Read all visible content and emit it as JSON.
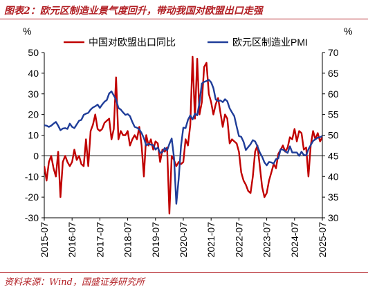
{
  "header": {
    "title": "图表2：欧元区制造业景气度回升，带动我国对欧盟出口走强"
  },
  "footer": {
    "source": "资料来源：Wind，国盛证券研究所"
  },
  "colors": {
    "accent": "#b21f24",
    "left_series": "#c00000",
    "right_series": "#1f3d99"
  },
  "chart_data": {
    "type": "line",
    "title": "",
    "left_axis": {
      "unit": "%",
      "ylim": [
        -30,
        50
      ],
      "ticks": [
        -30,
        -20,
        -10,
        0,
        10,
        20,
        30,
        40,
        50
      ]
    },
    "right_axis": {
      "unit": "%",
      "ylim": [
        30,
        70
      ],
      "ticks": [
        30,
        35,
        40,
        45,
        50,
        55,
        60,
        65,
        70
      ]
    },
    "x_ticks": [
      "2015-07",
      "2016-07",
      "2017-07",
      "2018-07",
      "2019-07",
      "2020-07",
      "2021-07",
      "2022-07",
      "2023-07",
      "2024-07",
      "2025-07"
    ],
    "x_tick_values": [
      2015.5,
      2016.5,
      2017.5,
      2018.5,
      2019.5,
      2020.5,
      2021.5,
      2022.5,
      2023.5,
      2024.5,
      2025.5
    ],
    "x_range": [
      2015.5,
      2025.5
    ],
    "legend": "top-center",
    "grid": false,
    "series": [
      {
        "name": "中国对欧盟出口同比",
        "axis": "left",
        "color": "#c00000",
        "points": [
          [
            2015.5,
            -5
          ],
          [
            2015.583,
            -12
          ],
          [
            2015.667,
            -3
          ],
          [
            2015.75,
            0
          ],
          [
            2015.833,
            -6
          ],
          [
            2015.917,
            -10
          ],
          [
            2016.0,
            2
          ],
          [
            2016.083,
            -20
          ],
          [
            2016.167,
            -3
          ],
          [
            2016.25,
            0
          ],
          [
            2016.333,
            -3
          ],
          [
            2016.417,
            -5
          ],
          [
            2016.5,
            -3
          ],
          [
            2016.583,
            3
          ],
          [
            2016.667,
            -2
          ],
          [
            2016.75,
            0
          ],
          [
            2016.833,
            -4
          ],
          [
            2016.917,
            -5
          ],
          [
            2017.0,
            8
          ],
          [
            2017.083,
            -5
          ],
          [
            2017.167,
            12
          ],
          [
            2017.25,
            15
          ],
          [
            2017.333,
            20
          ],
          [
            2017.417,
            13
          ],
          [
            2017.5,
            12
          ],
          [
            2017.583,
            13
          ],
          [
            2017.667,
            16
          ],
          [
            2017.75,
            17
          ],
          [
            2017.833,
            18
          ],
          [
            2017.917,
            8
          ],
          [
            2018.0,
            13
          ],
          [
            2018.083,
            38
          ],
          [
            2018.167,
            8
          ],
          [
            2018.25,
            12
          ],
          [
            2018.333,
            10
          ],
          [
            2018.417,
            10
          ],
          [
            2018.5,
            12
          ],
          [
            2018.583,
            5
          ],
          [
            2018.667,
            8
          ],
          [
            2018.75,
            10
          ],
          [
            2018.833,
            8
          ],
          [
            2018.917,
            14
          ],
          [
            2019.0,
            5
          ],
          [
            2019.083,
            -10
          ],
          [
            2019.167,
            10
          ],
          [
            2019.25,
            5
          ],
          [
            2019.333,
            8
          ],
          [
            2019.417,
            3
          ],
          [
            2019.5,
            7
          ],
          [
            2019.583,
            6
          ],
          [
            2019.667,
            -3
          ],
          [
            2019.75,
            3
          ],
          [
            2019.833,
            2
          ],
          [
            2019.917,
            4
          ],
          [
            2020.0,
            -28
          ],
          [
            2020.083,
            0
          ],
          [
            2020.167,
            -2
          ],
          [
            2020.25,
            -5
          ],
          [
            2020.333,
            -3
          ],
          [
            2020.417,
            -4
          ],
          [
            2020.5,
            -3
          ],
          [
            2020.583,
            8
          ],
          [
            2020.667,
            5
          ],
          [
            2020.75,
            15
          ],
          [
            2020.833,
            48
          ],
          [
            2020.917,
            18
          ],
          [
            2021.0,
            47
          ],
          [
            2021.083,
            20
          ],
          [
            2021.167,
            26
          ],
          [
            2021.25,
            43
          ],
          [
            2021.333,
            45
          ],
          [
            2021.417,
            30
          ],
          [
            2021.5,
            26
          ],
          [
            2021.583,
            20
          ],
          [
            2021.667,
            25
          ],
          [
            2021.75,
            28
          ],
          [
            2021.833,
            21
          ],
          [
            2021.917,
            14
          ],
          [
            2022.0,
            20
          ],
          [
            2022.083,
            18
          ],
          [
            2022.167,
            6
          ],
          [
            2022.25,
            8
          ],
          [
            2022.333,
            7
          ],
          [
            2022.417,
            6
          ],
          [
            2022.5,
            2
          ],
          [
            2022.583,
            -8
          ],
          [
            2022.667,
            -12
          ],
          [
            2022.75,
            -14
          ],
          [
            2022.833,
            -17
          ],
          [
            2022.917,
            -18
          ],
          [
            2023.0,
            -10
          ],
          [
            2023.083,
            2
          ],
          [
            2023.167,
            5
          ],
          [
            2023.25,
            -5
          ],
          [
            2023.333,
            -15
          ],
          [
            2023.417,
            -20
          ],
          [
            2023.5,
            -18
          ],
          [
            2023.583,
            -12
          ],
          [
            2023.667,
            -8
          ],
          [
            2023.75,
            -4
          ],
          [
            2023.833,
            -6
          ],
          [
            2023.917,
            1
          ],
          [
            2024.0,
            3
          ],
          [
            2024.083,
            5
          ],
          [
            2024.167,
            2
          ],
          [
            2024.25,
            4
          ],
          [
            2024.333,
            9
          ],
          [
            2024.417,
            8
          ],
          [
            2024.5,
            13
          ],
          [
            2024.583,
            7
          ],
          [
            2024.667,
            12
          ],
          [
            2024.75,
            11
          ],
          [
            2024.833,
            3
          ],
          [
            2024.917,
            4
          ],
          [
            2025.0,
            -10
          ],
          [
            2025.083,
            5
          ],
          [
            2025.167,
            12
          ],
          [
            2025.25,
            8
          ],
          [
            2025.333,
            11
          ],
          [
            2025.417,
            7
          ],
          [
            2025.5,
            9
          ]
        ]
      },
      {
        "name": "欧元区制造业PMI",
        "axis": "right",
        "color": "#1f3d99",
        "points": [
          [
            2015.5,
            52.4
          ],
          [
            2015.583,
            52.3
          ],
          [
            2015.667,
            52.0
          ],
          [
            2015.75,
            52.3
          ],
          [
            2015.833,
            52.8
          ],
          [
            2015.917,
            53.2
          ],
          [
            2016.0,
            52.3
          ],
          [
            2016.083,
            51.2
          ],
          [
            2016.167,
            51.6
          ],
          [
            2016.25,
            51.7
          ],
          [
            2016.333,
            51.5
          ],
          [
            2016.417,
            52.8
          ],
          [
            2016.5,
            52.0
          ],
          [
            2016.583,
            51.7
          ],
          [
            2016.667,
            52.6
          ],
          [
            2016.75,
            53.5
          ],
          [
            2016.833,
            53.7
          ],
          [
            2016.917,
            54.9
          ],
          [
            2017.0,
            55.2
          ],
          [
            2017.083,
            55.4
          ],
          [
            2017.167,
            56.2
          ],
          [
            2017.25,
            56.7
          ],
          [
            2017.333,
            57.0
          ],
          [
            2017.417,
            57.4
          ],
          [
            2017.5,
            56.6
          ],
          [
            2017.583,
            57.4
          ],
          [
            2017.667,
            58.1
          ],
          [
            2017.75,
            58.5
          ],
          [
            2017.833,
            60.1
          ],
          [
            2017.917,
            60.6
          ],
          [
            2018.0,
            59.6
          ],
          [
            2018.083,
            58.6
          ],
          [
            2018.167,
            56.6
          ],
          [
            2018.25,
            56.2
          ],
          [
            2018.333,
            55.5
          ],
          [
            2018.417,
            54.9
          ],
          [
            2018.5,
            55.1
          ],
          [
            2018.583,
            54.6
          ],
          [
            2018.667,
            53.2
          ],
          [
            2018.75,
            52.0
          ],
          [
            2018.833,
            51.8
          ],
          [
            2018.917,
            51.4
          ],
          [
            2019.0,
            50.5
          ],
          [
            2019.083,
            49.3
          ],
          [
            2019.167,
            47.5
          ],
          [
            2019.25,
            47.9
          ],
          [
            2019.333,
            47.7
          ],
          [
            2019.417,
            47.6
          ],
          [
            2019.5,
            46.5
          ],
          [
            2019.583,
            47.0
          ],
          [
            2019.667,
            45.7
          ],
          [
            2019.75,
            45.9
          ],
          [
            2019.833,
            46.9
          ],
          [
            2019.917,
            46.3
          ],
          [
            2020.0,
            47.9
          ],
          [
            2020.083,
            49.2
          ],
          [
            2020.167,
            44.5
          ],
          [
            2020.25,
            33.4
          ],
          [
            2020.333,
            39.4
          ],
          [
            2020.417,
            47.4
          ],
          [
            2020.5,
            51.8
          ],
          [
            2020.583,
            51.7
          ],
          [
            2020.667,
            53.7
          ],
          [
            2020.75,
            54.8
          ],
          [
            2020.833,
            53.8
          ],
          [
            2020.917,
            55.2
          ],
          [
            2021.0,
            54.8
          ],
          [
            2021.083,
            57.9
          ],
          [
            2021.167,
            62.5
          ],
          [
            2021.25,
            62.9
          ],
          [
            2021.333,
            63.1
          ],
          [
            2021.417,
            63.4
          ],
          [
            2021.5,
            62.8
          ],
          [
            2021.583,
            61.4
          ],
          [
            2021.667,
            58.6
          ],
          [
            2021.75,
            58.3
          ],
          [
            2021.833,
            58.4
          ],
          [
            2021.917,
            58.0
          ],
          [
            2022.0,
            58.7
          ],
          [
            2022.083,
            58.2
          ],
          [
            2022.167,
            56.5
          ],
          [
            2022.25,
            55.5
          ],
          [
            2022.333,
            54.6
          ],
          [
            2022.417,
            52.1
          ],
          [
            2022.5,
            49.8
          ],
          [
            2022.583,
            49.6
          ],
          [
            2022.667,
            48.4
          ],
          [
            2022.75,
            46.4
          ],
          [
            2022.833,
            47.1
          ],
          [
            2022.917,
            47.8
          ],
          [
            2023.0,
            48.8
          ],
          [
            2023.083,
            48.5
          ],
          [
            2023.167,
            47.3
          ],
          [
            2023.25,
            45.8
          ],
          [
            2023.333,
            44.8
          ],
          [
            2023.417,
            43.4
          ],
          [
            2023.5,
            42.7
          ],
          [
            2023.583,
            43.5
          ],
          [
            2023.667,
            43.4
          ],
          [
            2023.75,
            43.1
          ],
          [
            2023.833,
            44.2
          ],
          [
            2023.917,
            44.4
          ],
          [
            2024.0,
            46.6
          ],
          [
            2024.083,
            46.5
          ],
          [
            2024.167,
            46.1
          ],
          [
            2024.25,
            45.7
          ],
          [
            2024.333,
            47.3
          ],
          [
            2024.417,
            45.8
          ],
          [
            2024.5,
            45.8
          ],
          [
            2024.583,
            45.8
          ],
          [
            2024.667,
            45.0
          ],
          [
            2024.75,
            46.0
          ],
          [
            2024.833,
            45.2
          ],
          [
            2024.917,
            45.1
          ],
          [
            2025.0,
            46.6
          ],
          [
            2025.083,
            47.6
          ],
          [
            2025.167,
            48.6
          ],
          [
            2025.25,
            49.0
          ],
          [
            2025.333,
            49.4
          ],
          [
            2025.417,
            49.5
          ],
          [
            2025.5,
            49.8
          ]
        ]
      }
    ]
  }
}
